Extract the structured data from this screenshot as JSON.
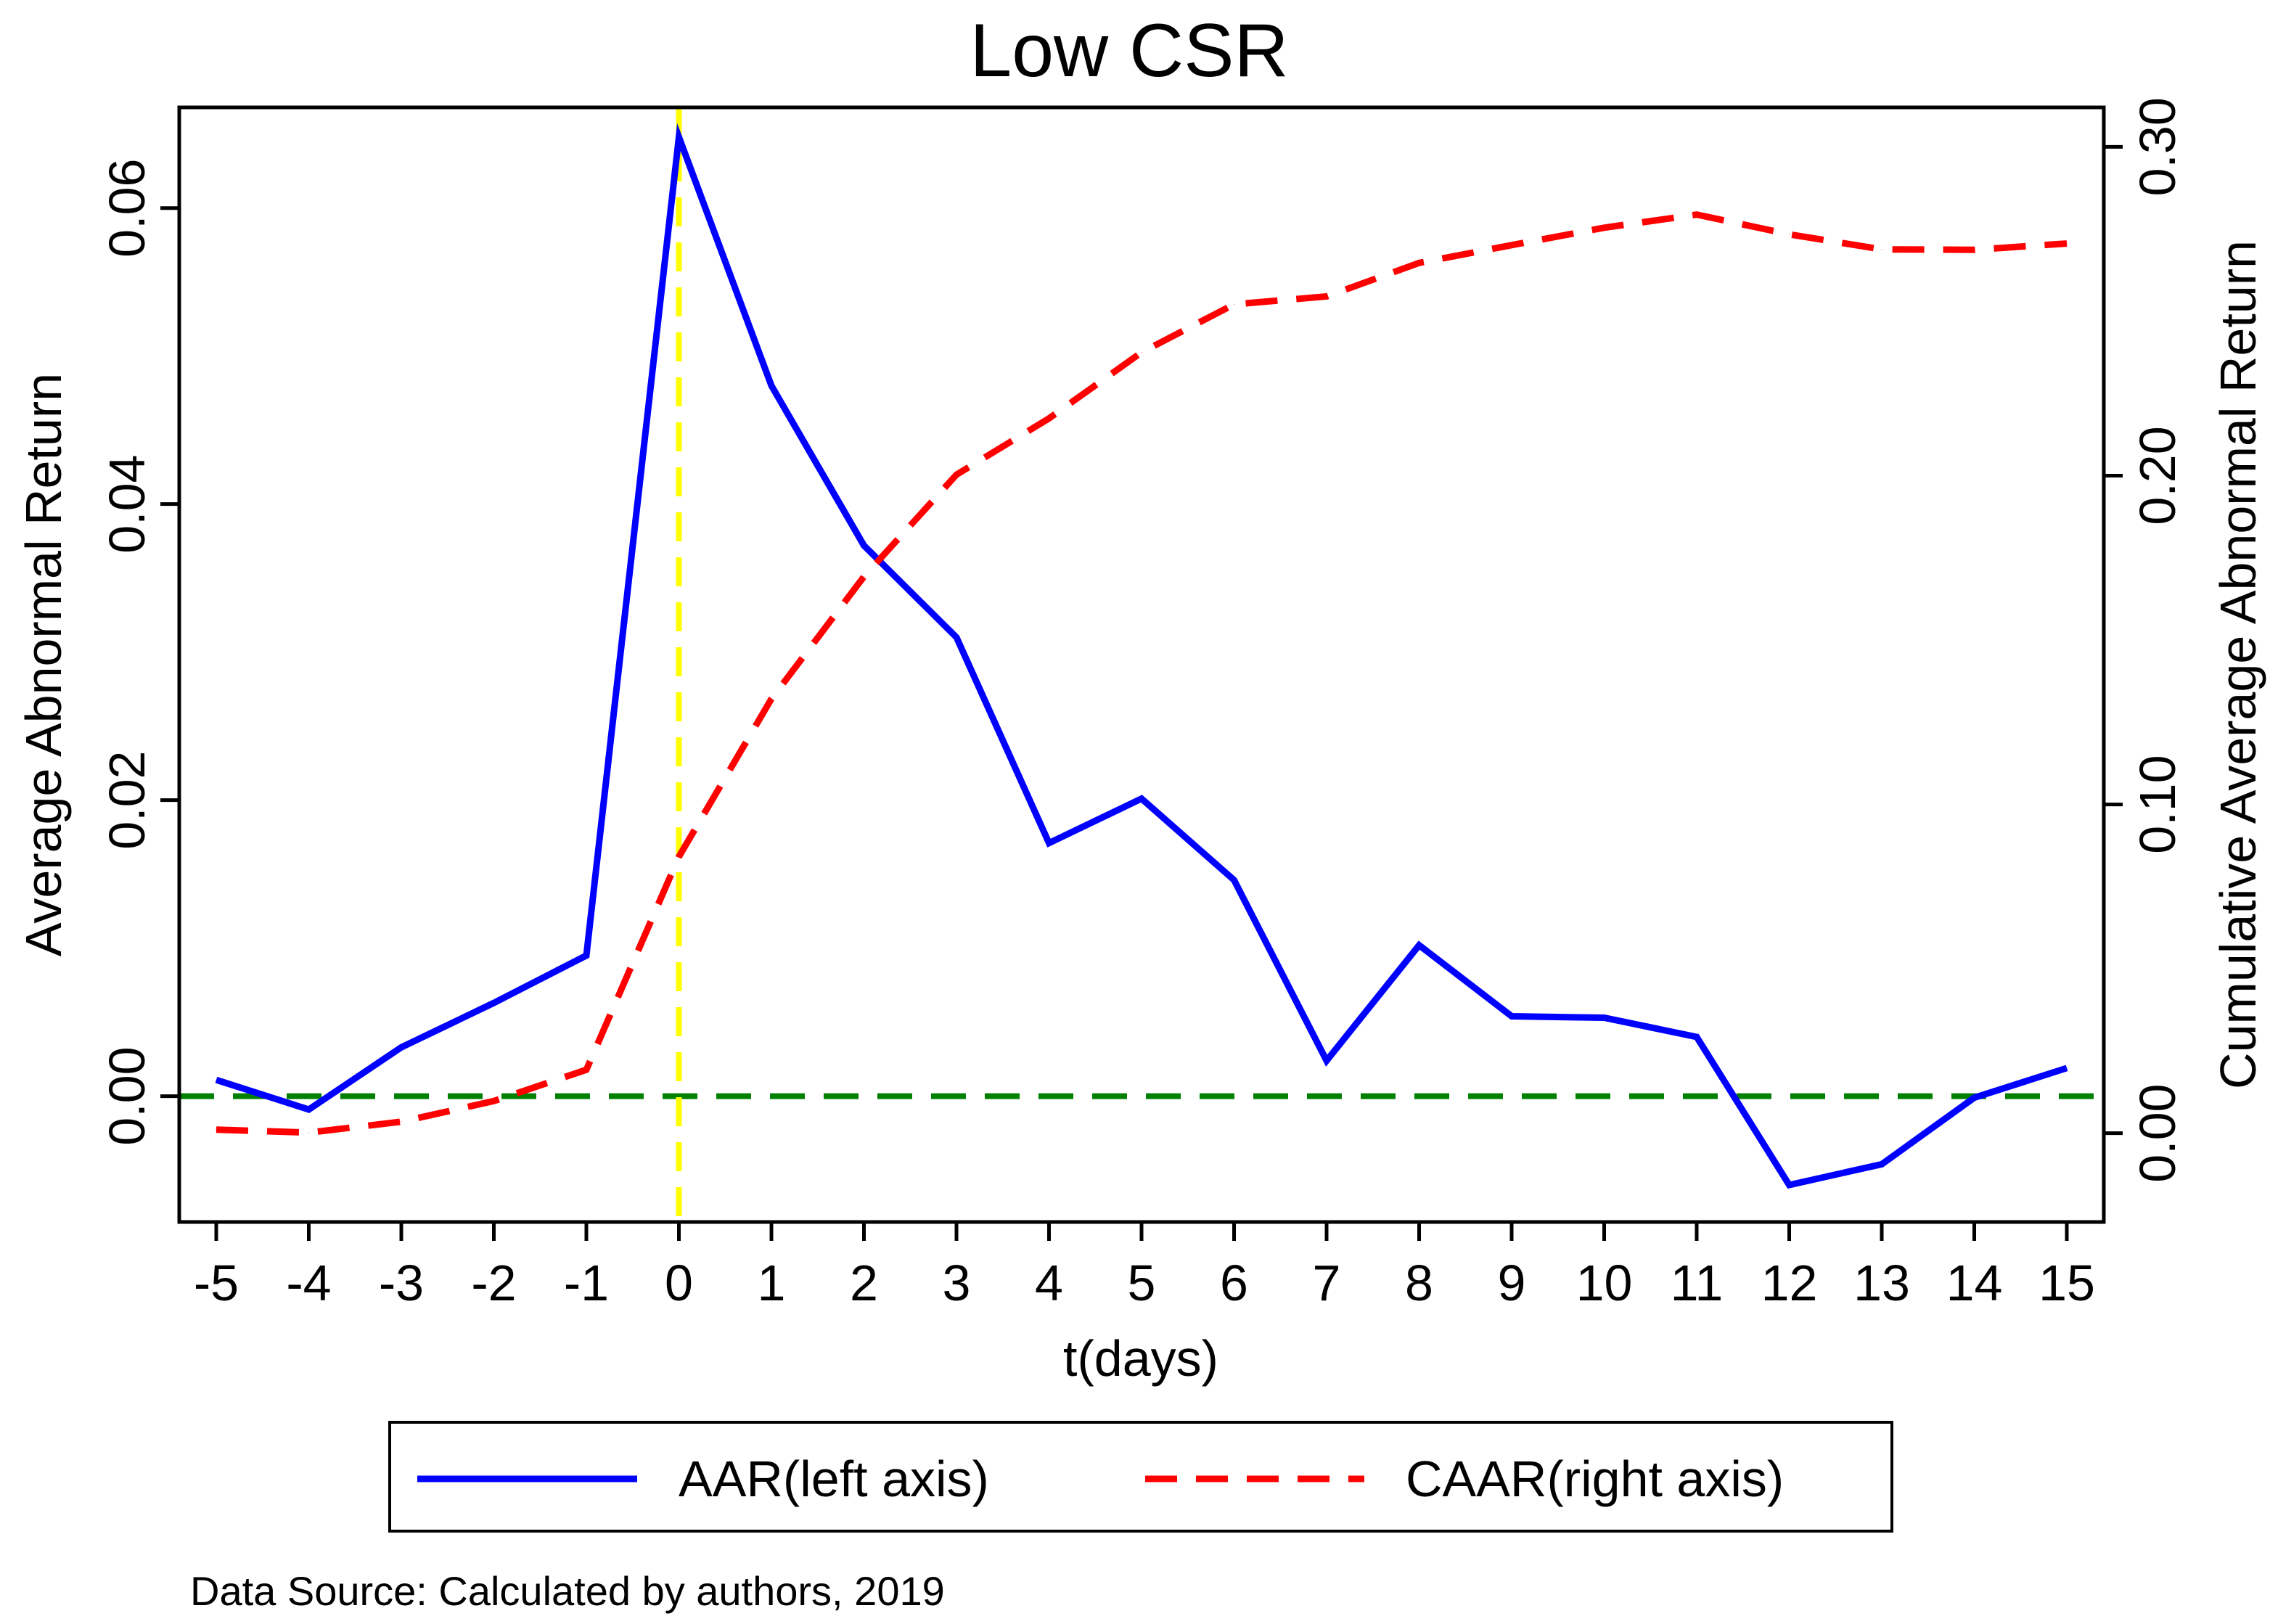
{
  "chart_data": {
    "type": "line",
    "title": "Low CSR",
    "xlabel": "t(days)",
    "ylabel": "Average Abnormal Return",
    "y2label": "Cumulative Average Abnormal Return",
    "x": [
      -5,
      -4,
      -3,
      -2,
      -1,
      0,
      1,
      2,
      3,
      4,
      5,
      6,
      7,
      8,
      9,
      10,
      11,
      12,
      13,
      14,
      15
    ],
    "x_tick_labels": [
      "-5",
      "-4",
      "-3",
      "-2",
      "-1",
      "0",
      "1",
      "2",
      "3",
      "4",
      "5",
      "6",
      "7",
      "8",
      "9",
      "10",
      "11",
      "12",
      "13",
      "14",
      "15"
    ],
    "xlim": [
      -5.4,
      15.4
    ],
    "ylim": [
      -0.0085,
      0.0668
    ],
    "y_ticks": [
      0.0,
      0.02,
      0.04,
      0.06
    ],
    "y_tick_labels": [
      "0.00",
      "0.02",
      "0.04",
      "0.06"
    ],
    "y2lim": [
      -0.027,
      0.312
    ],
    "y2_ticks": [
      0.0,
      0.1,
      0.2,
      0.3
    ],
    "y2_tick_labels": [
      "0.00",
      "0.10",
      "0.20",
      "0.30"
    ],
    "series": [
      {
        "name": "AAR(left axis)",
        "axis": "left",
        "style": "solid",
        "color": "#0000ff",
        "values": [
          0.0011,
          -0.0009,
          0.0033,
          0.0063,
          0.0095,
          0.0648,
          0.048,
          0.0372,
          0.031,
          0.0171,
          0.0201,
          0.0146,
          0.0024,
          0.0102,
          0.0054,
          0.0053,
          0.004,
          -0.006,
          -0.0046,
          -0.0001,
          0.0019
        ]
      },
      {
        "name": "CAAR(right axis)",
        "axis": "right",
        "style": "dashed",
        "color": "#ff0000",
        "values": [
          0.0011,
          0.0002,
          0.0035,
          0.0098,
          0.0193,
          0.0841,
          0.1321,
          0.1693,
          0.2003,
          0.2174,
          0.2375,
          0.2521,
          0.2545,
          0.2647,
          0.2701,
          0.2754,
          0.2794,
          0.2734,
          0.2688,
          0.2687,
          0.2706
        ]
      }
    ],
    "reference_lines": [
      {
        "type": "horizontal",
        "axis": "left",
        "value": 0.0,
        "color": "#008000",
        "style": "dashed"
      },
      {
        "type": "vertical",
        "value": 0,
        "color": "#ffff00",
        "style": "dashed"
      }
    ],
    "legend": {
      "placement": "bottom",
      "entries": [
        "AAR(left axis)",
        "CAAR(right axis)"
      ]
    },
    "source_note": "Data Source: Calculated by authors, 2019"
  }
}
